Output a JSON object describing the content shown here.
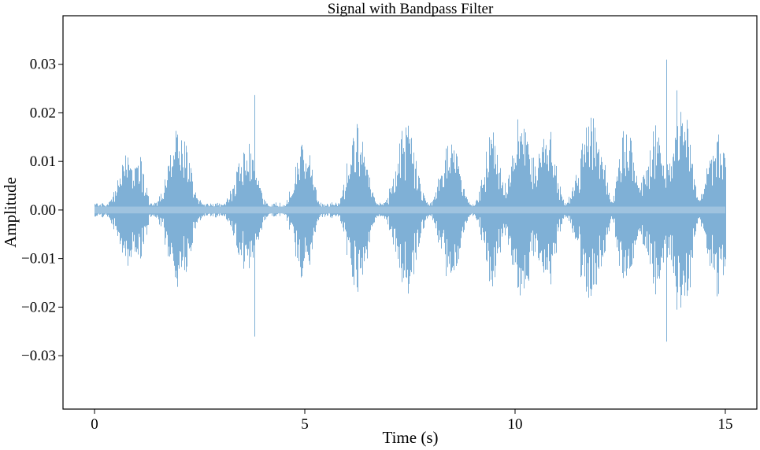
{
  "chart_data": {
    "type": "line",
    "title": "Signal with Bandpass Filter",
    "xlabel": "Time (s)",
    "ylabel": "Amplitude",
    "xlim": [
      -0.75,
      15.75
    ],
    "ylim": [
      -0.041,
      0.04
    ],
    "x_ticks": [
      0,
      5,
      10,
      15
    ],
    "x_tick_labels": [
      "0",
      "5",
      "10",
      "15"
    ],
    "y_ticks": [
      0.03,
      0.02,
      0.01,
      0.0,
      -0.01,
      -0.02,
      -0.03
    ],
    "y_tick_labels": [
      "0.03",
      "0.02",
      "0.01",
      "0.00",
      "−0.01",
      "−0.02",
      "−0.03"
    ],
    "grid": false,
    "legend": "none",
    "series_color": "#7fb0d6",
    "signal": {
      "t_start": 0,
      "t_end": 15,
      "baseline_amplitude": 0.0012,
      "bursts": [
        {
          "t": 0.75,
          "width": 0.45,
          "amplitude": 0.012
        },
        {
          "t": 1.05,
          "width": 0.3,
          "amplitude": 0.013
        },
        {
          "t": 2.0,
          "width": 0.55,
          "amplitude": 0.0175
        },
        {
          "t": 3.6,
          "width": 0.5,
          "amplitude": 0.0155
        },
        {
          "t": 3.8,
          "width": 0.02,
          "amplitude": 0.0305
        },
        {
          "t": 4.95,
          "width": 0.4,
          "amplitude": 0.0175
        },
        {
          "t": 6.25,
          "width": 0.45,
          "amplitude": 0.0205
        },
        {
          "t": 7.4,
          "width": 0.5,
          "amplitude": 0.019
        },
        {
          "t": 8.45,
          "width": 0.45,
          "amplitude": 0.017
        },
        {
          "t": 9.45,
          "width": 0.4,
          "amplitude": 0.0165
        },
        {
          "t": 10.15,
          "width": 0.55,
          "amplitude": 0.0205
        },
        {
          "t": 10.75,
          "width": 0.4,
          "amplitude": 0.02
        },
        {
          "t": 11.8,
          "width": 0.55,
          "amplitude": 0.0215
        },
        {
          "t": 12.65,
          "width": 0.35,
          "amplitude": 0.0225
        },
        {
          "t": 13.35,
          "width": 0.5,
          "amplitude": 0.019
        },
        {
          "t": 13.6,
          "width": 0.02,
          "amplitude": 0.036
        },
        {
          "t": 13.95,
          "width": 0.4,
          "amplitude": 0.0305
        },
        {
          "t": 14.8,
          "width": 0.45,
          "amplitude": 0.019
        }
      ]
    }
  }
}
